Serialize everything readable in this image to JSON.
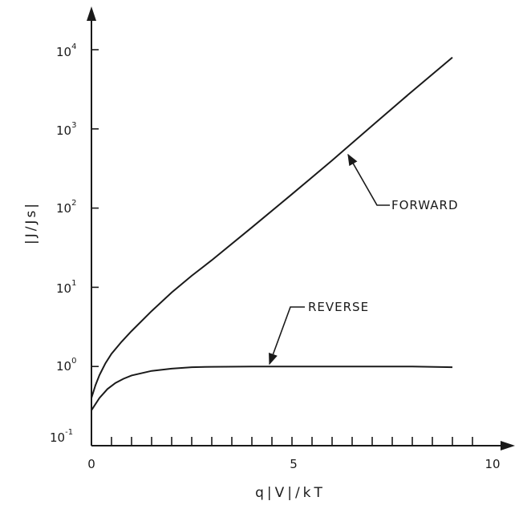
{
  "chart_data": {
    "type": "line",
    "title": "",
    "xlabel": "q|V|/kT",
    "ylabel": "|J/Js|",
    "x_ticks": [
      0,
      5,
      10
    ],
    "x_minor_step": 0.5,
    "xlim": [
      0,
      10
    ],
    "y_scale": "log",
    "ylim": [
      0.1,
      10000
    ],
    "y_ticks": [
      {
        "base": "10",
        "exp": "-1",
        "value": 0.1
      },
      {
        "base": "10",
        "exp": "0",
        "value": 1
      },
      {
        "base": "10",
        "exp": "1",
        "value": 10
      },
      {
        "base": "10",
        "exp": "2",
        "value": 100
      },
      {
        "base": "10",
        "exp": "3",
        "value": 1000
      },
      {
        "base": "10",
        "exp": "4",
        "value": 10000
      }
    ],
    "grid": false,
    "series": [
      {
        "name": "FORWARD",
        "x": [
          0,
          0.1,
          0.2,
          0.35,
          0.5,
          0.75,
          1.0,
          1.5,
          2.0,
          2.5,
          3.0,
          4.0,
          5.0,
          6.0,
          7.0,
          8.0,
          9.0
        ],
        "y": [
          0.4,
          0.58,
          0.78,
          1.1,
          1.45,
          2.05,
          2.8,
          5.0,
          8.6,
          14,
          22,
          57,
          150,
          400,
          1100,
          3000,
          8000
        ]
      },
      {
        "name": "REVERSE",
        "x": [
          0,
          0.2,
          0.4,
          0.6,
          0.8,
          1.0,
          1.5,
          2.0,
          2.5,
          3.0,
          4.0,
          5.0,
          6.0,
          7.0,
          8.0,
          9.0
        ],
        "y": [
          0.28,
          0.4,
          0.52,
          0.62,
          0.7,
          0.77,
          0.88,
          0.94,
          0.98,
          0.99,
          1.0,
          1.0,
          1.0,
          1.0,
          1.0,
          0.98
        ]
      }
    ],
    "annotations": [
      "FORWARD",
      "REVERSE"
    ]
  }
}
